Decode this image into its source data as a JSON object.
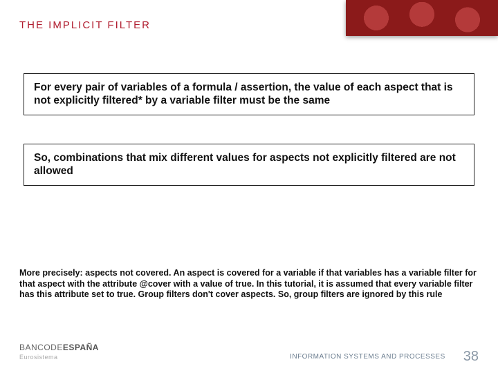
{
  "title": "THE IMPLICIT FILTER",
  "box1": "For every pair of variables of a formula / assertion, the value of each aspect that is not explicitly filtered* by a variable filter must be the same",
  "box2": "So, combinations that mix different values for aspects not explicitly filtered are not allowed",
  "note": "More precisely: aspects not covered. An aspect is covered for a variable if that variables has a variable filter for that aspect with the attribute @cover with a value of true. In this tutorial, it is assumed that every variable filter has this attribute set to true. Group filters don't cover aspects. So, group filters are ignored by this rule",
  "logo_prefix": "BANCODE",
  "logo_suffix": "ESPAÑA",
  "logo_sub": "Eurosistema",
  "dept": "INFORMATION SYSTEMS AND PROCESSES",
  "page": "38",
  "colors": {
    "accent": "#b01c2e",
    "banner": "#8b1a1a",
    "text": "#111111",
    "footer_muted": "#8a98a6"
  }
}
